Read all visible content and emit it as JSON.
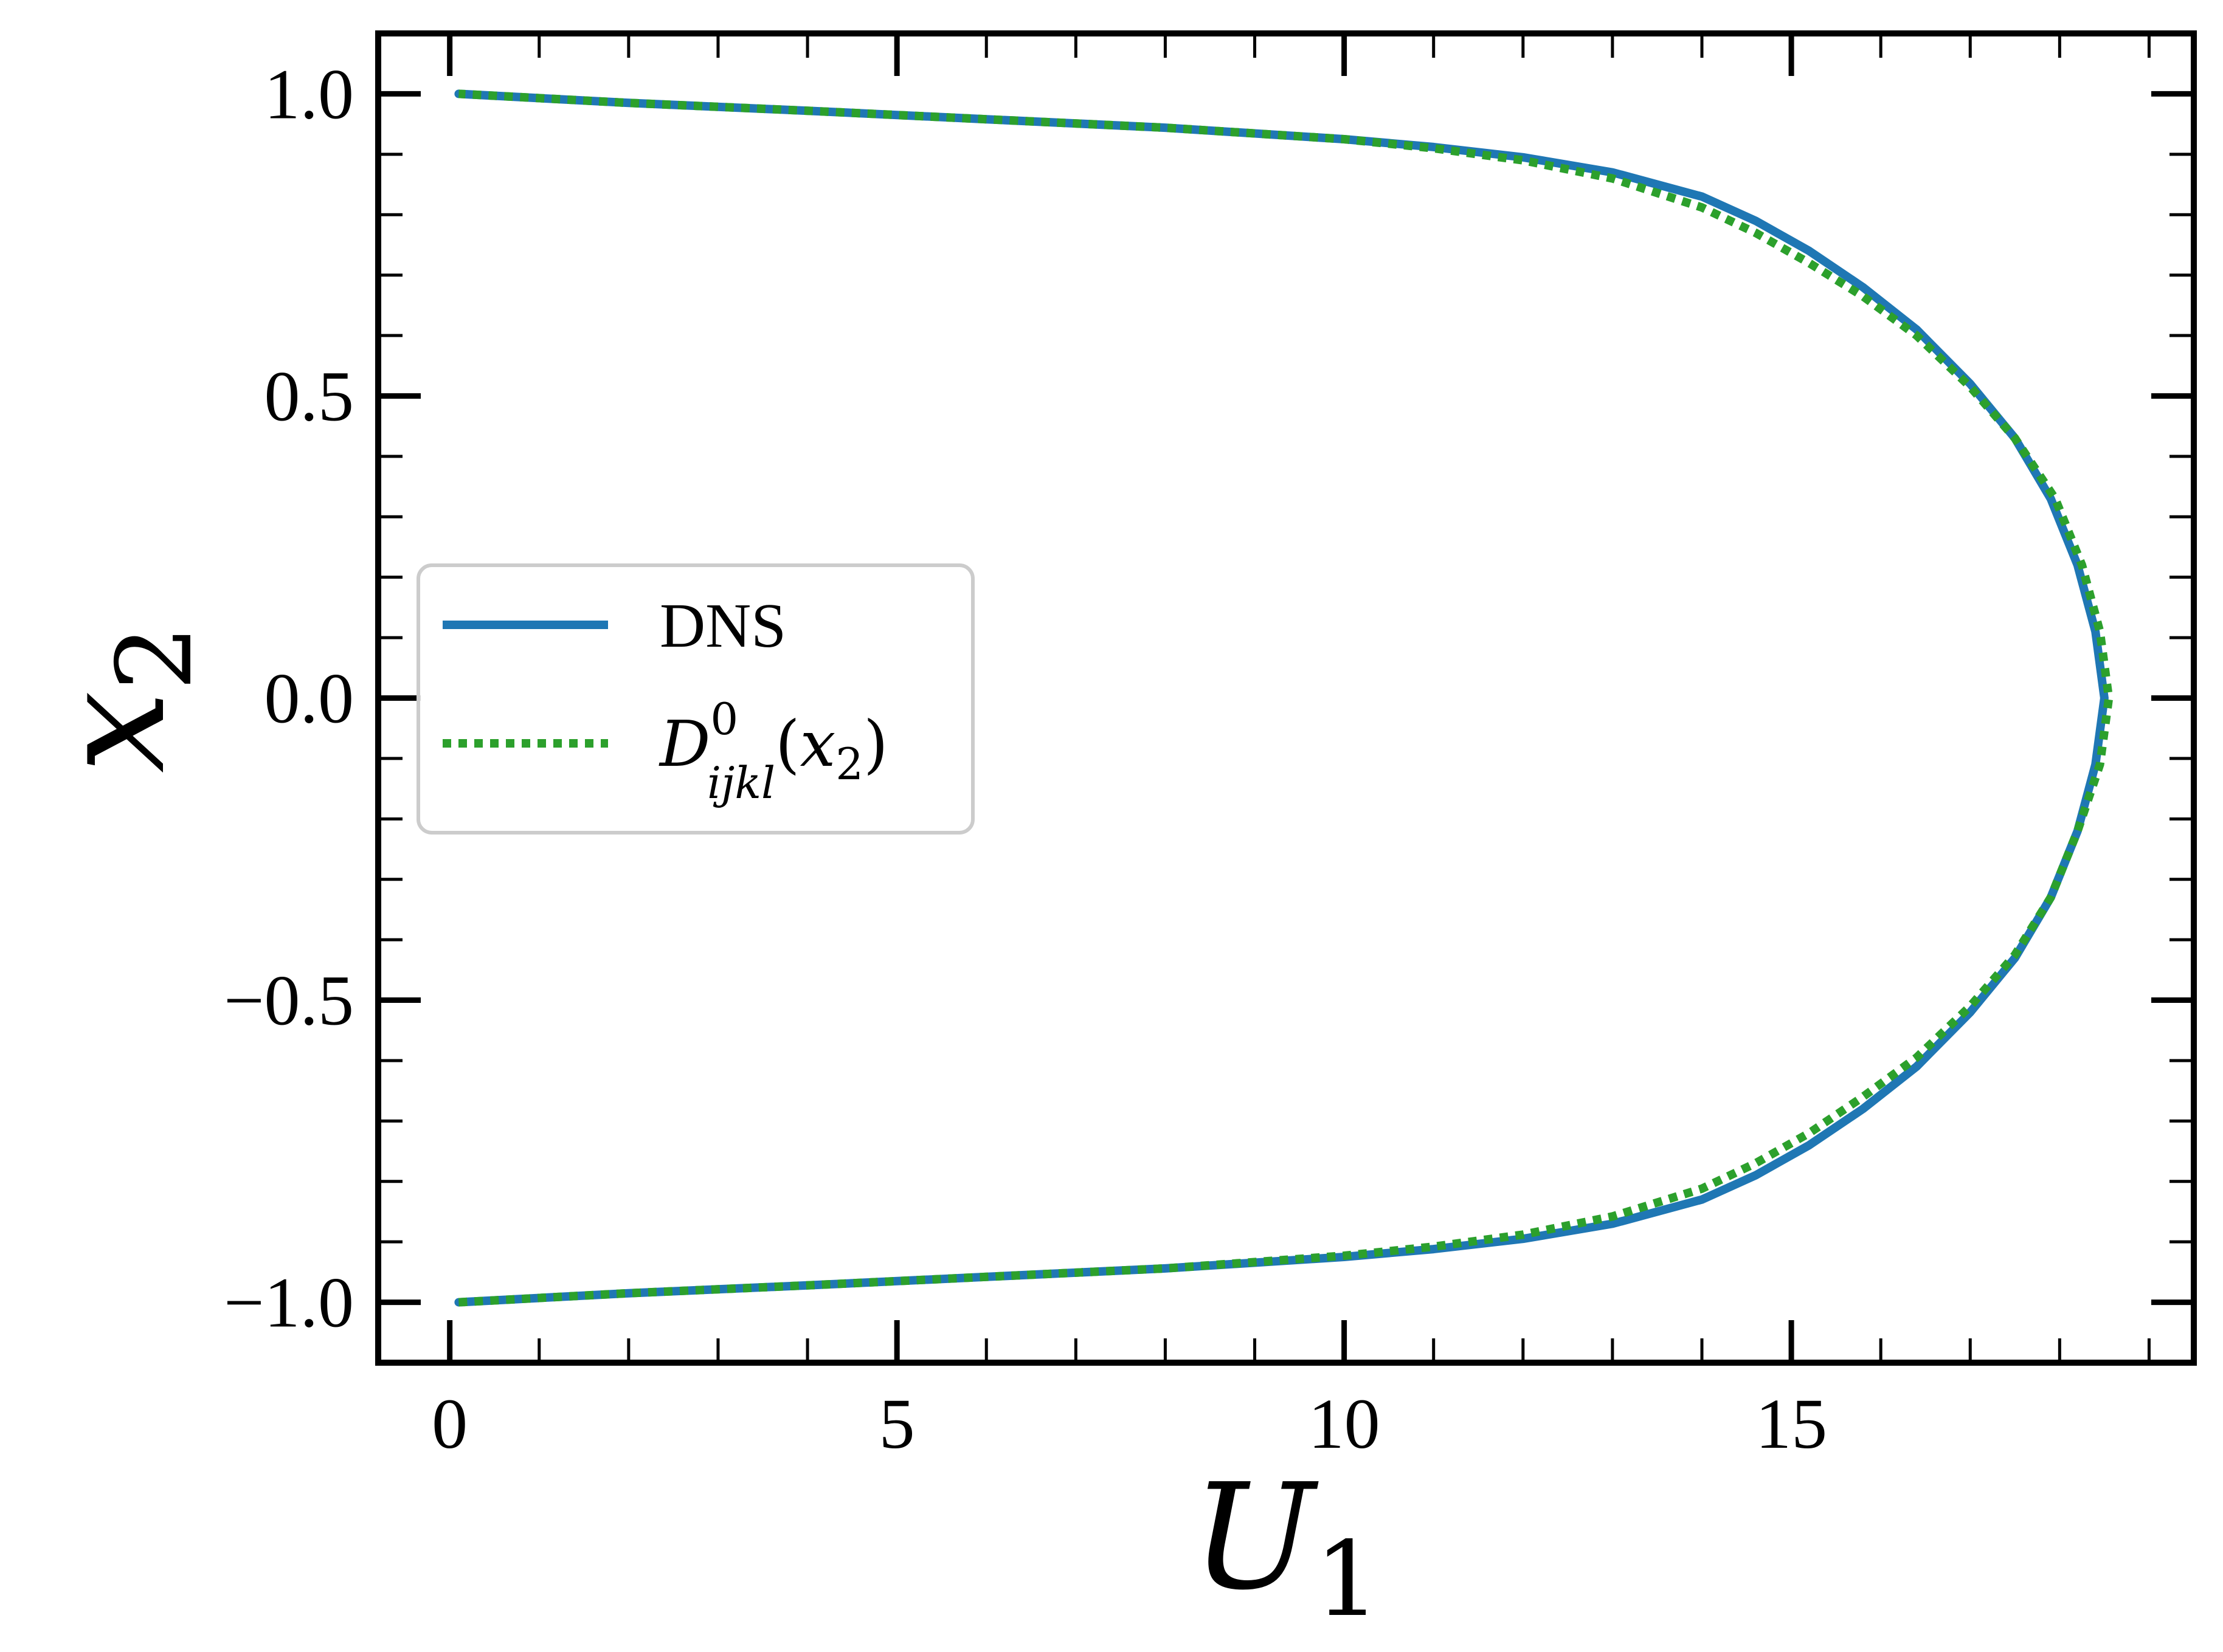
{
  "chart_data": {
    "type": "line",
    "xlabel": {
      "base": "U",
      "sub": "1"
    },
    "ylabel": {
      "base": "x",
      "sub": "2"
    },
    "xlim": [
      -0.8,
      19.5
    ],
    "ylim": [
      -1.1,
      1.1
    ],
    "x_ticks": [
      0,
      5,
      10,
      15
    ],
    "x_tick_labels": [
      "0",
      "5",
      "10",
      "15"
    ],
    "x_minor_step": 1,
    "y_ticks": [
      -1.0,
      -0.5,
      0.0,
      0.5,
      1.0
    ],
    "y_tick_labels": [
      "−1.0",
      "−0.5",
      "0.0",
      "0.5",
      "1.0"
    ],
    "y_minor_step": 0.1,
    "tick_direction": "in",
    "legend": {
      "placement": "center-left"
    },
    "series": [
      {
        "name": "DNS",
        "color": "#1f77b4",
        "style": "solid",
        "points": [
          [
            0.1,
            -1.0
          ],
          [
            2.0,
            -0.985
          ],
          [
            4.0,
            -0.972
          ],
          [
            6.0,
            -0.958
          ],
          [
            8.0,
            -0.944
          ],
          [
            10.0,
            -0.925
          ],
          [
            11.0,
            -0.912
          ],
          [
            12.0,
            -0.895
          ],
          [
            13.0,
            -0.87
          ],
          [
            14.0,
            -0.83
          ],
          [
            14.6,
            -0.79
          ],
          [
            15.2,
            -0.74
          ],
          [
            15.8,
            -0.68
          ],
          [
            16.4,
            -0.61
          ],
          [
            17.0,
            -0.52
          ],
          [
            17.5,
            -0.43
          ],
          [
            17.9,
            -0.33
          ],
          [
            18.2,
            -0.22
          ],
          [
            18.4,
            -0.11
          ],
          [
            18.5,
            0.0
          ],
          [
            18.4,
            0.11
          ],
          [
            18.2,
            0.22
          ],
          [
            17.9,
            0.33
          ],
          [
            17.5,
            0.43
          ],
          [
            17.0,
            0.52
          ],
          [
            16.4,
            0.61
          ],
          [
            15.8,
            0.68
          ],
          [
            15.2,
            0.74
          ],
          [
            14.6,
            0.79
          ],
          [
            14.0,
            0.83
          ],
          [
            13.0,
            0.87
          ],
          [
            12.0,
            0.895
          ],
          [
            11.0,
            0.912
          ],
          [
            10.0,
            0.925
          ],
          [
            8.0,
            0.944
          ],
          [
            6.0,
            0.958
          ],
          [
            4.0,
            0.972
          ],
          [
            2.0,
            0.985
          ],
          [
            0.1,
            1.0
          ]
        ]
      },
      {
        "name": "D^0_ijkl(x_2)",
        "color": "#2ca02c",
        "style": "dotted",
        "label_parts": {
          "base": "D",
          "sup": "0",
          "sub": "ijkl",
          "arg_base": "x",
          "arg_sub": "2"
        },
        "points": [
          [
            0.1,
            -1.0
          ],
          [
            2.0,
            -0.985
          ],
          [
            4.0,
            -0.972
          ],
          [
            6.0,
            -0.958
          ],
          [
            8.0,
            -0.944
          ],
          [
            10.0,
            -0.923
          ],
          [
            11.0,
            -0.908
          ],
          [
            12.0,
            -0.888
          ],
          [
            13.0,
            -0.858
          ],
          [
            14.0,
            -0.812
          ],
          [
            14.6,
            -0.77
          ],
          [
            15.2,
            -0.72
          ],
          [
            15.8,
            -0.66
          ],
          [
            16.4,
            -0.595
          ],
          [
            17.0,
            -0.51
          ],
          [
            17.5,
            -0.425
          ],
          [
            17.9,
            -0.33
          ],
          [
            18.2,
            -0.22
          ],
          [
            18.45,
            -0.11
          ],
          [
            18.55,
            0.0
          ],
          [
            18.45,
            0.11
          ],
          [
            18.25,
            0.22
          ],
          [
            17.95,
            0.33
          ],
          [
            17.5,
            0.43
          ],
          [
            17.0,
            0.515
          ],
          [
            16.4,
            0.6
          ],
          [
            15.8,
            0.665
          ],
          [
            15.2,
            0.72
          ],
          [
            14.6,
            0.77
          ],
          [
            14.0,
            0.812
          ],
          [
            13.0,
            0.86
          ],
          [
            12.0,
            0.89
          ],
          [
            11.0,
            0.91
          ],
          [
            10.0,
            0.925
          ],
          [
            8.0,
            0.944
          ],
          [
            6.0,
            0.958
          ],
          [
            4.0,
            0.972
          ],
          [
            2.0,
            0.985
          ],
          [
            0.1,
            1.0
          ]
        ]
      }
    ]
  }
}
